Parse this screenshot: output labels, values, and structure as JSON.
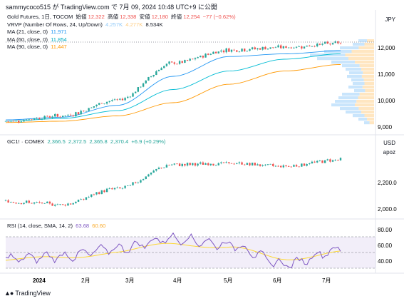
{
  "header": {
    "text": "sammycoco515 が TradingView.com で 7月 09, 2024 10:48 UTC+9 に公開"
  },
  "currency": "JPY",
  "currency2": "USD",
  "apoz_label": "apoz",
  "pane1": {
    "legend": {
      "title": "Gold Futures, 1日, TOCOM",
      "open_label": "始値",
      "open": "12,322",
      "high_label": "高値",
      "high": "12,338",
      "low_label": "安値",
      "low": "12,180",
      "close_label": "終値",
      "close": "12,254",
      "change": "−77 (−0.62%)",
      "vrvp": "VRVP (Number Of Rows, 24, Up/Down)",
      "vrvp_up": "4.257K",
      "vrvp_down": "4.277K",
      "vrvp_total": "8.534K",
      "ma21": "MA (21, close, 0)",
      "ma21_val": "11,971",
      "ma60": "MA (60, close, 0)",
      "ma60_val": "11,854",
      "ma90": "MA (90, close, 0)",
      "ma90_val": "11,447"
    },
    "yticks": [
      "12,000",
      "11,000",
      "10,000",
      "9,000"
    ]
  },
  "pane2": {
    "legend": {
      "title": "GC1! · COMEX",
      "o": "2,366.5",
      "h": "2,372.5",
      "l": "2,365.8",
      "c": "2,370.4",
      "change": "+6.9 (+0.29%)"
    },
    "yticks": [
      "2,200.0",
      "2,000.0"
    ]
  },
  "pane3": {
    "legend": {
      "title": "RSI (14, close, SMA, 14, 2)",
      "rsi": "63.68",
      "sma": "60.60"
    },
    "yticks": [
      "80.00",
      "60.00",
      "40.00"
    ]
  },
  "xaxis": [
    "2024",
    "2月",
    "3月",
    "4月",
    "5月",
    "6月",
    "7月"
  ],
  "footer": {
    "brand": "TradingView"
  },
  "colors": {
    "up": "#26a69a",
    "down": "#ef5350",
    "ma21": "#2196f3",
    "ma60": "#00bcd4",
    "ma90": "#ff9800",
    "rsi": "#7e57c2",
    "rsi_sma": "#fdd835"
  },
  "chart_data": [
    {
      "type": "line",
      "title": "Gold Futures, 1日, TOCOM",
      "x": [
        "2024-01",
        "2024-02",
        "2024-03",
        "2024-04",
        "2024-05",
        "2024-06",
        "2024-07"
      ],
      "series": [
        {
          "name": "close",
          "values": [
            9300,
            9500,
            10100,
            11500,
            12000,
            12100,
            12254
          ]
        },
        {
          "name": "MA (21, close, 0)",
          "values": [
            9350,
            9450,
            9900,
            11000,
            11750,
            11850,
            11971
          ]
        },
        {
          "name": "MA (60, close, 0)",
          "values": [
            9300,
            9400,
            9700,
            10500,
            11200,
            11650,
            11854
          ]
        },
        {
          "name": "MA (90, close, 0)",
          "values": [
            9250,
            9300,
            9500,
            10000,
            10700,
            11200,
            11447
          ]
        }
      ],
      "ylim": [
        8900,
        12500
      ]
    },
    {
      "type": "line",
      "title": "GC1! · COMEX",
      "x": [
        "2024-01",
        "2024-02",
        "2024-03",
        "2024-04",
        "2024-05",
        "2024-06",
        "2024-07"
      ],
      "series": [
        {
          "name": "close",
          "values": [
            2050,
            2030,
            2150,
            2330,
            2340,
            2320,
            2370
          ]
        }
      ],
      "ylim": [
        1950,
        2450
      ]
    },
    {
      "type": "line",
      "title": "RSI (14, close, SMA, 14, 2)",
      "x": [
        "2024-01",
        "2024-02",
        "2024-03",
        "2024-04",
        "2024-05",
        "2024-06",
        "2024-07"
      ],
      "series": [
        {
          "name": "RSI",
          "values": [
            52,
            55,
            65,
            78,
            70,
            45,
            63.68
          ]
        },
        {
          "name": "SMA",
          "values": [
            50,
            54,
            60,
            72,
            66,
            52,
            60.6
          ]
        }
      ],
      "ylim": [
        30,
        90
      ]
    }
  ]
}
